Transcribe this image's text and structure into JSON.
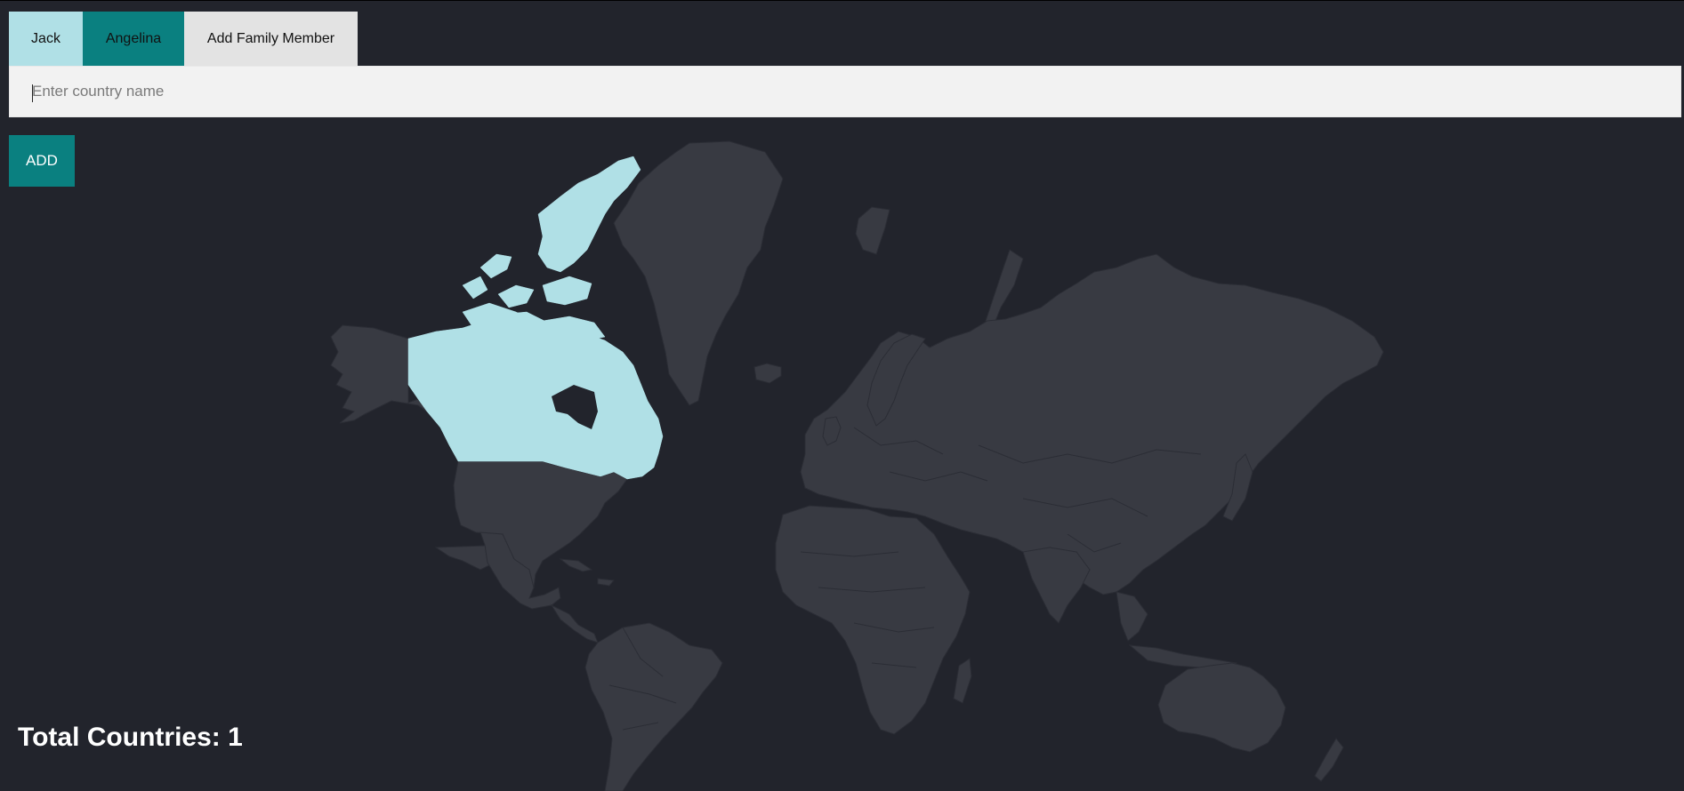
{
  "tabs": [
    {
      "label": "Jack",
      "color": "#b0e0e6"
    },
    {
      "label": "Angelina",
      "color": "#0a8080"
    },
    {
      "label": "Add Family Member"
    }
  ],
  "search": {
    "placeholder": "Enter country name",
    "value": ""
  },
  "add_button": {
    "label": "ADD"
  },
  "map": {
    "visited_countries": [
      "Canada"
    ],
    "visited_color": "#b0e0e6",
    "land_color": "#383a42"
  },
  "total": {
    "text": "Total Countries: 1"
  }
}
